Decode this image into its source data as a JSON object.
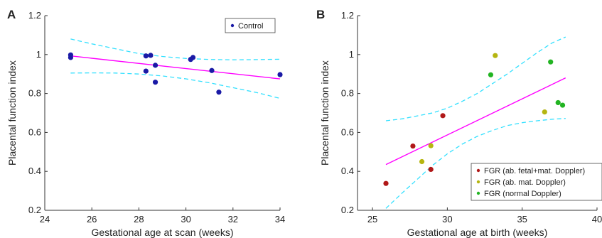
{
  "chart_data": [
    {
      "type": "scatter",
      "panel_label": "A",
      "xlabel": "Gestational age at scan (weeks)",
      "ylabel": "Placental function index",
      "xlim": [
        24,
        34
      ],
      "ylim": [
        0.2,
        1.2
      ],
      "xticks": [
        24,
        26,
        28,
        30,
        32,
        34
      ],
      "yticks": [
        0.2,
        0.4,
        0.6,
        0.8,
        1,
        1.2
      ],
      "legend_position": "top-right",
      "series": [
        {
          "name": "Control",
          "color": "#1a1aa6",
          "points": [
            [
              25.1,
              0.998
            ],
            [
              25.1,
              0.985
            ],
            [
              28.3,
              0.993
            ],
            [
              28.5,
              0.996
            ],
            [
              28.3,
              0.915
            ],
            [
              28.7,
              0.945
            ],
            [
              28.7,
              0.858
            ],
            [
              30.2,
              0.975
            ],
            [
              30.3,
              0.985
            ],
            [
              31.1,
              0.918
            ],
            [
              31.4,
              0.807
            ],
            [
              34.0,
              0.897
            ]
          ]
        }
      ],
      "fit": {
        "color": "#ff00ff",
        "x": [
          25.1,
          34.0
        ],
        "y": [
          0.993,
          0.875
        ]
      },
      "ci_upper": {
        "color": "#33e0ff",
        "x": [
          25.1,
          26,
          27,
          28,
          29,
          30,
          31,
          32,
          33,
          34
        ],
        "y": [
          1.08,
          1.055,
          1.03,
          1.005,
          0.99,
          0.98,
          0.975,
          0.973,
          0.974,
          0.976
        ]
      },
      "ci_lower": {
        "color": "#33e0ff",
        "x": [
          25.1,
          26,
          27,
          28,
          29,
          30,
          31,
          32,
          33,
          34
        ],
        "y": [
          0.905,
          0.906,
          0.905,
          0.9,
          0.89,
          0.875,
          0.855,
          0.83,
          0.805,
          0.775
        ]
      }
    },
    {
      "type": "scatter",
      "panel_label": "B",
      "xlabel": "Gestational age at birth (weeks)",
      "ylabel": "Placental function index",
      "xlim": [
        24,
        40
      ],
      "ylim": [
        0.2,
        1.2
      ],
      "xticks": [
        25,
        30,
        35,
        40
      ],
      "yticks": [
        0.2,
        0.4,
        0.6,
        0.8,
        1,
        1.2
      ],
      "legend_position": "bottom-right",
      "series": [
        {
          "name": "FGR (ab. fetal+mat. Doppler)",
          "color": "#b01818",
          "points": [
            [
              25.9,
              0.338
            ],
            [
              27.7,
              0.53
            ],
            [
              28.9,
              0.41
            ],
            [
              29.7,
              0.686
            ]
          ]
        },
        {
          "name": "FGR (ab. mat. Doppler)",
          "color": "#b5b510",
          "points": [
            [
              28.3,
              0.45
            ],
            [
              28.9,
              0.532
            ],
            [
              33.2,
              0.995
            ],
            [
              36.5,
              0.705
            ]
          ]
        },
        {
          "name": "FGR (normal Doppler)",
          "color": "#22b422",
          "points": [
            [
              32.9,
              0.896
            ],
            [
              36.9,
              0.962
            ],
            [
              37.4,
              0.753
            ],
            [
              37.7,
              0.74
            ]
          ]
        }
      ],
      "fit": {
        "color": "#ff00ff",
        "x": [
          25.9,
          37.9
        ],
        "y": [
          0.435,
          0.88
        ]
      },
      "ci_upper": {
        "color": "#33e0ff",
        "x": [
          25.9,
          27,
          28,
          29,
          30,
          31,
          32,
          33,
          34,
          35,
          36,
          37,
          37.9
        ],
        "y": [
          0.66,
          0.67,
          0.685,
          0.7,
          0.725,
          0.76,
          0.8,
          0.85,
          0.9,
          0.955,
          1.01,
          1.06,
          1.09
        ]
      },
      "ci_lower": {
        "color": "#33e0ff",
        "x": [
          25.9,
          27,
          28,
          29,
          30,
          31,
          32,
          33,
          34,
          35,
          36,
          37,
          37.9
        ],
        "y": [
          0.21,
          0.29,
          0.36,
          0.43,
          0.49,
          0.54,
          0.58,
          0.61,
          0.635,
          0.65,
          0.66,
          0.668,
          0.672
        ]
      }
    }
  ]
}
